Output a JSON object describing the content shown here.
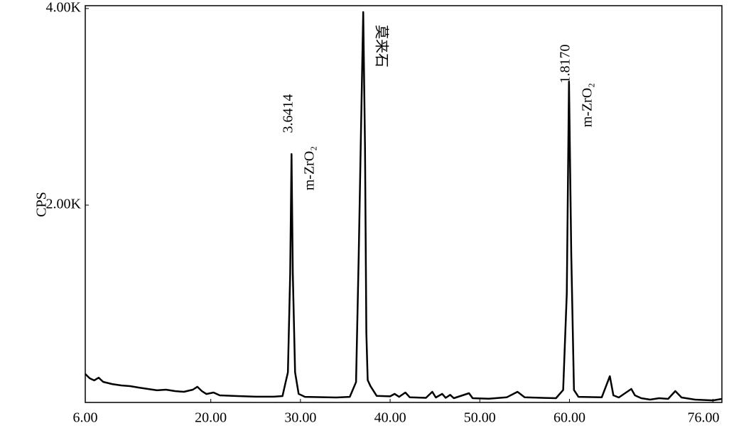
{
  "chart_data": {
    "type": "line",
    "ylabel": "CPS",
    "color": "#000000",
    "x": [
      6.0,
      6.5,
      7.0,
      7.5,
      8,
      9,
      10,
      11,
      12,
      13,
      14,
      15,
      16,
      17,
      18,
      18.5,
      19,
      19.5,
      20.3,
      21,
      23,
      25,
      27,
      28,
      28.3,
      28.6,
      28.85,
      29.0,
      29.15,
      29.4,
      29.8,
      30.5,
      34,
      35.5,
      36.2,
      36.5,
      36.8,
      37.0,
      37.2,
      37.35,
      37.5,
      37.8,
      38.5,
      40,
      40.5,
      41,
      41.7,
      42.2,
      44,
      44.7,
      45.1,
      45.8,
      46.2,
      46.7,
      47.1,
      48.8,
      49.2,
      51,
      53,
      54.2,
      55,
      58.5,
      59.3,
      59.7,
      59.95,
      60.2,
      60.5,
      61,
      63.6,
      64.5,
      64.9,
      65.5,
      66.9,
      67.3,
      68,
      69,
      70,
      71,
      71.8,
      72.5,
      74,
      76,
      77
    ],
    "values": [
      282,
      238,
      217,
      245,
      202,
      180,
      166,
      159,
      144,
      130,
      116,
      123,
      108,
      101,
      123,
      152,
      108,
      79,
      94,
      65,
      58,
      51,
      51,
      58,
      180,
      300,
      1300,
      2520,
      1300,
      300,
      80,
      50,
      43,
      50,
      200,
      1500,
      3000,
      3964,
      2600,
      700,
      220,
      160,
      60,
      55,
      80,
      50,
      94,
      45,
      40,
      101,
      43,
      80,
      40,
      70,
      36,
      87,
      36,
      30,
      45,
      101,
      45,
      36,
      120,
      1100,
      3256,
      1500,
      120,
      50,
      45,
      260,
      65,
      43,
      130,
      65,
      36,
      22,
      36,
      29,
      108,
      43,
      22,
      14,
      29
    ],
    "xlim": [
      6,
      77
    ],
    "ylim": [
      0,
      4000
    ],
    "xticks": [
      {
        "value": 6,
        "label": "6.00"
      },
      {
        "value": 20,
        "label": "20.00"
      },
      {
        "value": 30,
        "label": "30.00"
      },
      {
        "value": 40,
        "label": "40.00"
      },
      {
        "value": 50,
        "label": "50.00"
      },
      {
        "value": 60,
        "label": "60.00"
      },
      {
        "value": 76,
        "label": "76.00"
      }
    ],
    "yticks": [
      {
        "value": 2000,
        "label": "2.00K"
      },
      {
        "value": 4000,
        "label": "4.00K"
      }
    ],
    "annotations": [
      "3.6414",
      "m-ZrO₂",
      "莫来石",
      "1.8170",
      "m-ZrO₂"
    ]
  }
}
